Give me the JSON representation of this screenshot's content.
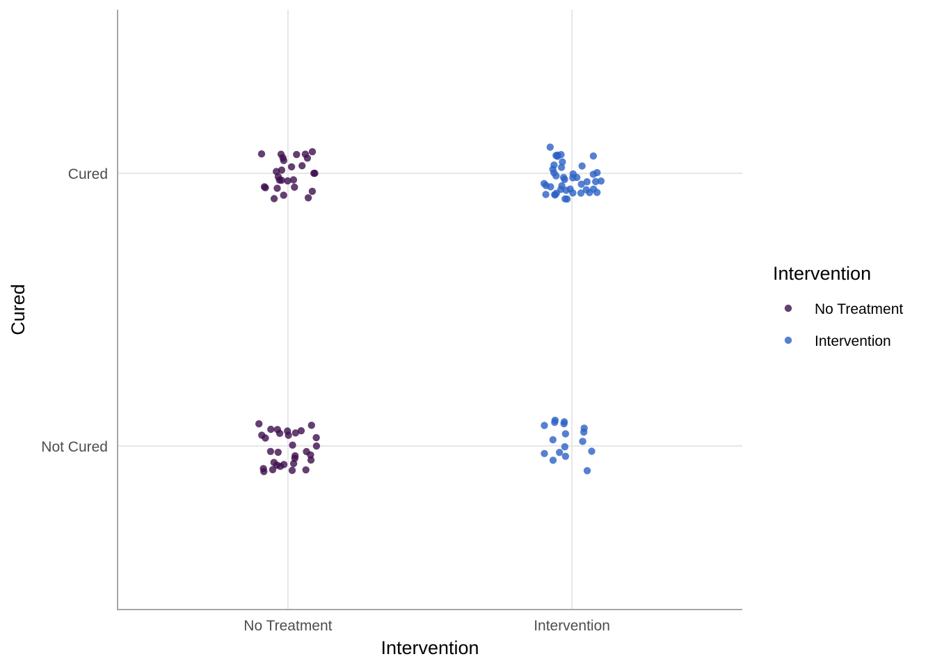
{
  "chart_data": {
    "type": "scatter",
    "jitter": true,
    "title": "",
    "xlabel": "Intervention",
    "ylabel": "Cured",
    "x_categories": [
      "No Treatment",
      "Intervention"
    ],
    "y_categories": [
      "Not Cured",
      "Cured"
    ],
    "grid": true,
    "legend": {
      "title": "Intervention",
      "position": "right",
      "entries": [
        "No Treatment",
        "Intervention"
      ]
    },
    "series": [
      {
        "name": "No Treatment",
        "color": "#3d0f4d",
        "points": [
          {
            "x": "No Treatment",
            "y": "Cured",
            "count": 27
          },
          {
            "x": "No Treatment",
            "y": "Not Cured",
            "count": 31
          }
        ]
      },
      {
        "name": "Intervention",
        "color": "#2c62c5",
        "points": [
          {
            "x": "Intervention",
            "y": "Cured",
            "count": 43
          },
          {
            "x": "Intervention",
            "y": "Not Cured",
            "count": 17
          }
        ]
      }
    ]
  }
}
